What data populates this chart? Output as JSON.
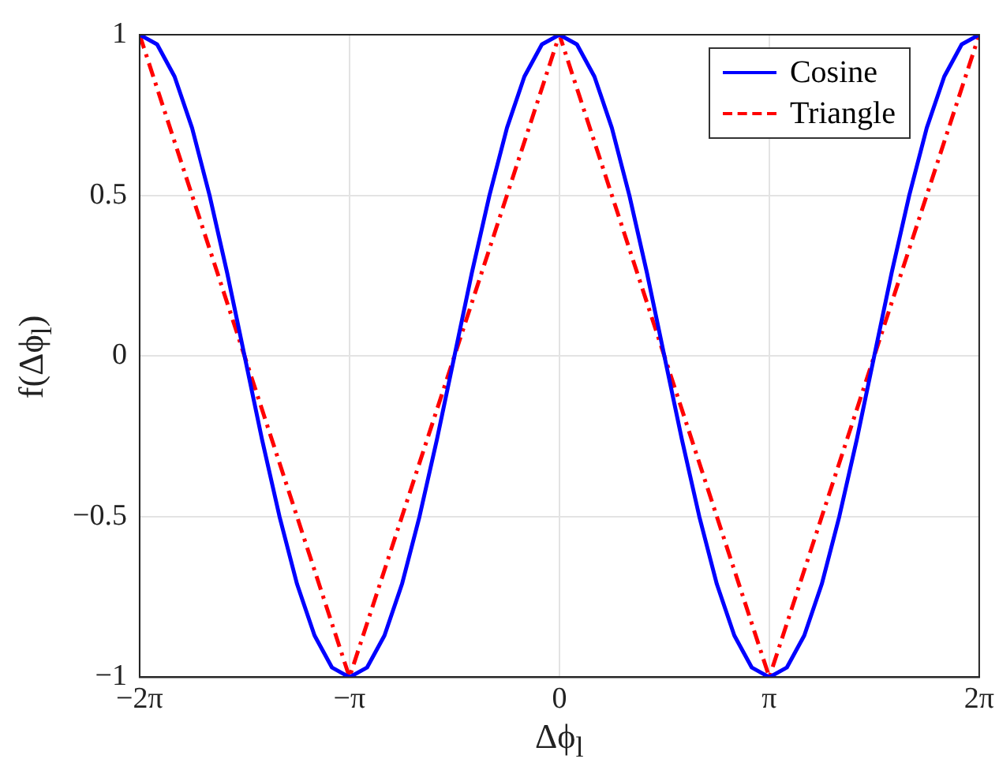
{
  "chart_data": {
    "type": "line",
    "xlabel": "Δϕ$_{l}$",
    "ylabel": "f(Δϕ$_{l}$)",
    "xlim": [
      -6.283,
      6.283
    ],
    "xticks": [
      {
        "value": -6.283,
        "label": "−2π"
      },
      {
        "value": -3.142,
        "label": "−π"
      },
      0,
      {
        "value": 3.142,
        "label": "π"
      },
      {
        "value": 6.283,
        "label": "2π"
      }
    ],
    "ylim": [
      -1,
      1
    ],
    "yticks": [
      {
        "value": -1,
        "label": "−1"
      },
      {
        "value": -0.5,
        "label": "−0.5"
      },
      0,
      0.5,
      1
    ],
    "grid": true,
    "legend": "top right",
    "series": [
      {
        "name": "Cosine",
        "color": "#0000ff",
        "line_style": "solid",
        "x": [
          -6.283,
          -6.021,
          -5.76,
          -5.498,
          -5.236,
          -4.974,
          -4.712,
          -4.451,
          -4.189,
          -3.927,
          -3.665,
          -3.403,
          -3.142,
          -2.88,
          -2.618,
          -2.356,
          -2.094,
          -1.833,
          -1.571,
          -1.309,
          -1.047,
          -0.785,
          -0.524,
          -0.262,
          0,
          0.262,
          0.524,
          0.785,
          1.047,
          1.309,
          1.571,
          1.833,
          2.094,
          2.356,
          2.618,
          2.88,
          3.142,
          3.403,
          3.665,
          3.927,
          4.189,
          4.451,
          4.712,
          4.974,
          5.236,
          5.498,
          5.76,
          6.021,
          6.283
        ],
        "values": [
          1,
          0.97,
          0.87,
          0.71,
          0.5,
          0.26,
          0,
          -0.26,
          -0.5,
          -0.71,
          -0.87,
          -0.97,
          -1,
          -0.97,
          -0.87,
          -0.71,
          -0.5,
          -0.26,
          0,
          0.26,
          0.5,
          0.71,
          0.87,
          0.97,
          1,
          0.97,
          0.87,
          0.71,
          0.5,
          0.26,
          0,
          -0.26,
          -0.5,
          -0.71,
          -0.87,
          -0.97,
          -1,
          -0.97,
          -0.87,
          -0.71,
          -0.5,
          -0.26,
          0,
          0.26,
          0.5,
          0.71,
          0.87,
          0.97,
          1
        ]
      },
      {
        "name": "Triangle",
        "color": "#ff0000",
        "line_style": "dashed",
        "x": [
          -6.283,
          -3.142,
          0,
          3.142,
          6.283
        ],
        "values": [
          1,
          -1,
          1,
          -1,
          1
        ]
      }
    ]
  }
}
